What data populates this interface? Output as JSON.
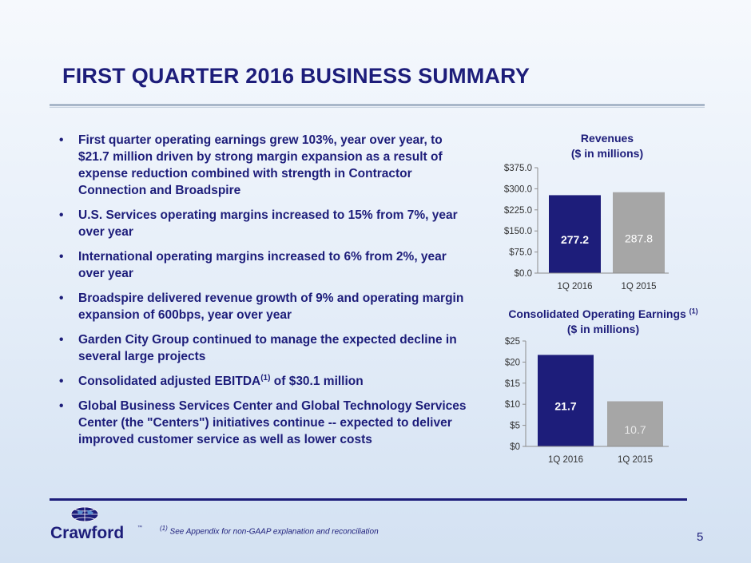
{
  "slide": {
    "title": "FIRST QUARTER 2016 BUSINESS SUMMARY",
    "page_number": "5"
  },
  "bullets": [
    {
      "text": "First quarter operating earnings grew 103%, year over year, to $21.7 million driven by strong margin expansion as a result of expense reduction combined with strength in Contractor Connection and Broadspire"
    },
    {
      "text": "U.S. Services operating margins increased to 15% from 7%, year over year"
    },
    {
      "text": "International operating margins increased to 6% from 2%, year over year"
    },
    {
      "text": "Broadspire delivered revenue growth of 9% and operating margin expansion of 600bps, year over year"
    },
    {
      "text": "Garden City Group continued to manage the expected decline in several large projects"
    },
    {
      "pre": "Consolidated adjusted EBITDA",
      "sup": "(1)",
      "post": " of $30.1 million"
    },
    {
      "text": "Global Business Services Center and Global Technology Services Center (the \"Centers\") initiatives continue -- expected to deliver improved customer service as well as lower costs"
    }
  ],
  "footnote": {
    "marker": "(1)",
    "text": " See Appendix for non-GAAP explanation and reconciliation"
  },
  "logo": {
    "name": "Crawford",
    "mark": "™"
  },
  "colors": {
    "navy": "#1d1d7a",
    "gray_bar": "#a6a6a6"
  },
  "chart_data": [
    {
      "type": "bar",
      "title": "Revenues",
      "subtitle": "($ in millions)",
      "title_sup": "",
      "categories": [
        "1Q 2016",
        "1Q 2015"
      ],
      "values": [
        277.2,
        287.8
      ],
      "value_labels": [
        "277.2",
        "287.8"
      ],
      "ylim": [
        0,
        375
      ],
      "yticks": [
        0,
        75,
        150,
        225,
        300,
        375
      ],
      "ytick_labels": [
        "$0.0",
        "$75.0",
        "$150.0",
        "$225.0",
        "$300.0",
        "$375.0"
      ],
      "bar_colors": [
        "#1d1d7a",
        "#a6a6a6"
      ],
      "label_colors": [
        "#ffffff",
        "#ffffff"
      ],
      "grid": false
    },
    {
      "type": "bar",
      "title": "Consolidated Operating Earnings ",
      "subtitle": "($ in millions)",
      "title_sup": "(1)",
      "categories": [
        "1Q 2016",
        "1Q 2015"
      ],
      "values": [
        21.7,
        10.7
      ],
      "value_labels": [
        "21.7",
        "10.7"
      ],
      "ylim": [
        0,
        25
      ],
      "yticks": [
        0,
        5,
        10,
        15,
        20,
        25
      ],
      "ytick_labels": [
        "$0",
        "$5",
        "$10",
        "$15",
        "$20",
        "$25"
      ],
      "bar_colors": [
        "#1d1d7a",
        "#a6a6a6"
      ],
      "label_colors": [
        "#ffffff",
        "#e8e8e8"
      ],
      "grid": false
    }
  ]
}
